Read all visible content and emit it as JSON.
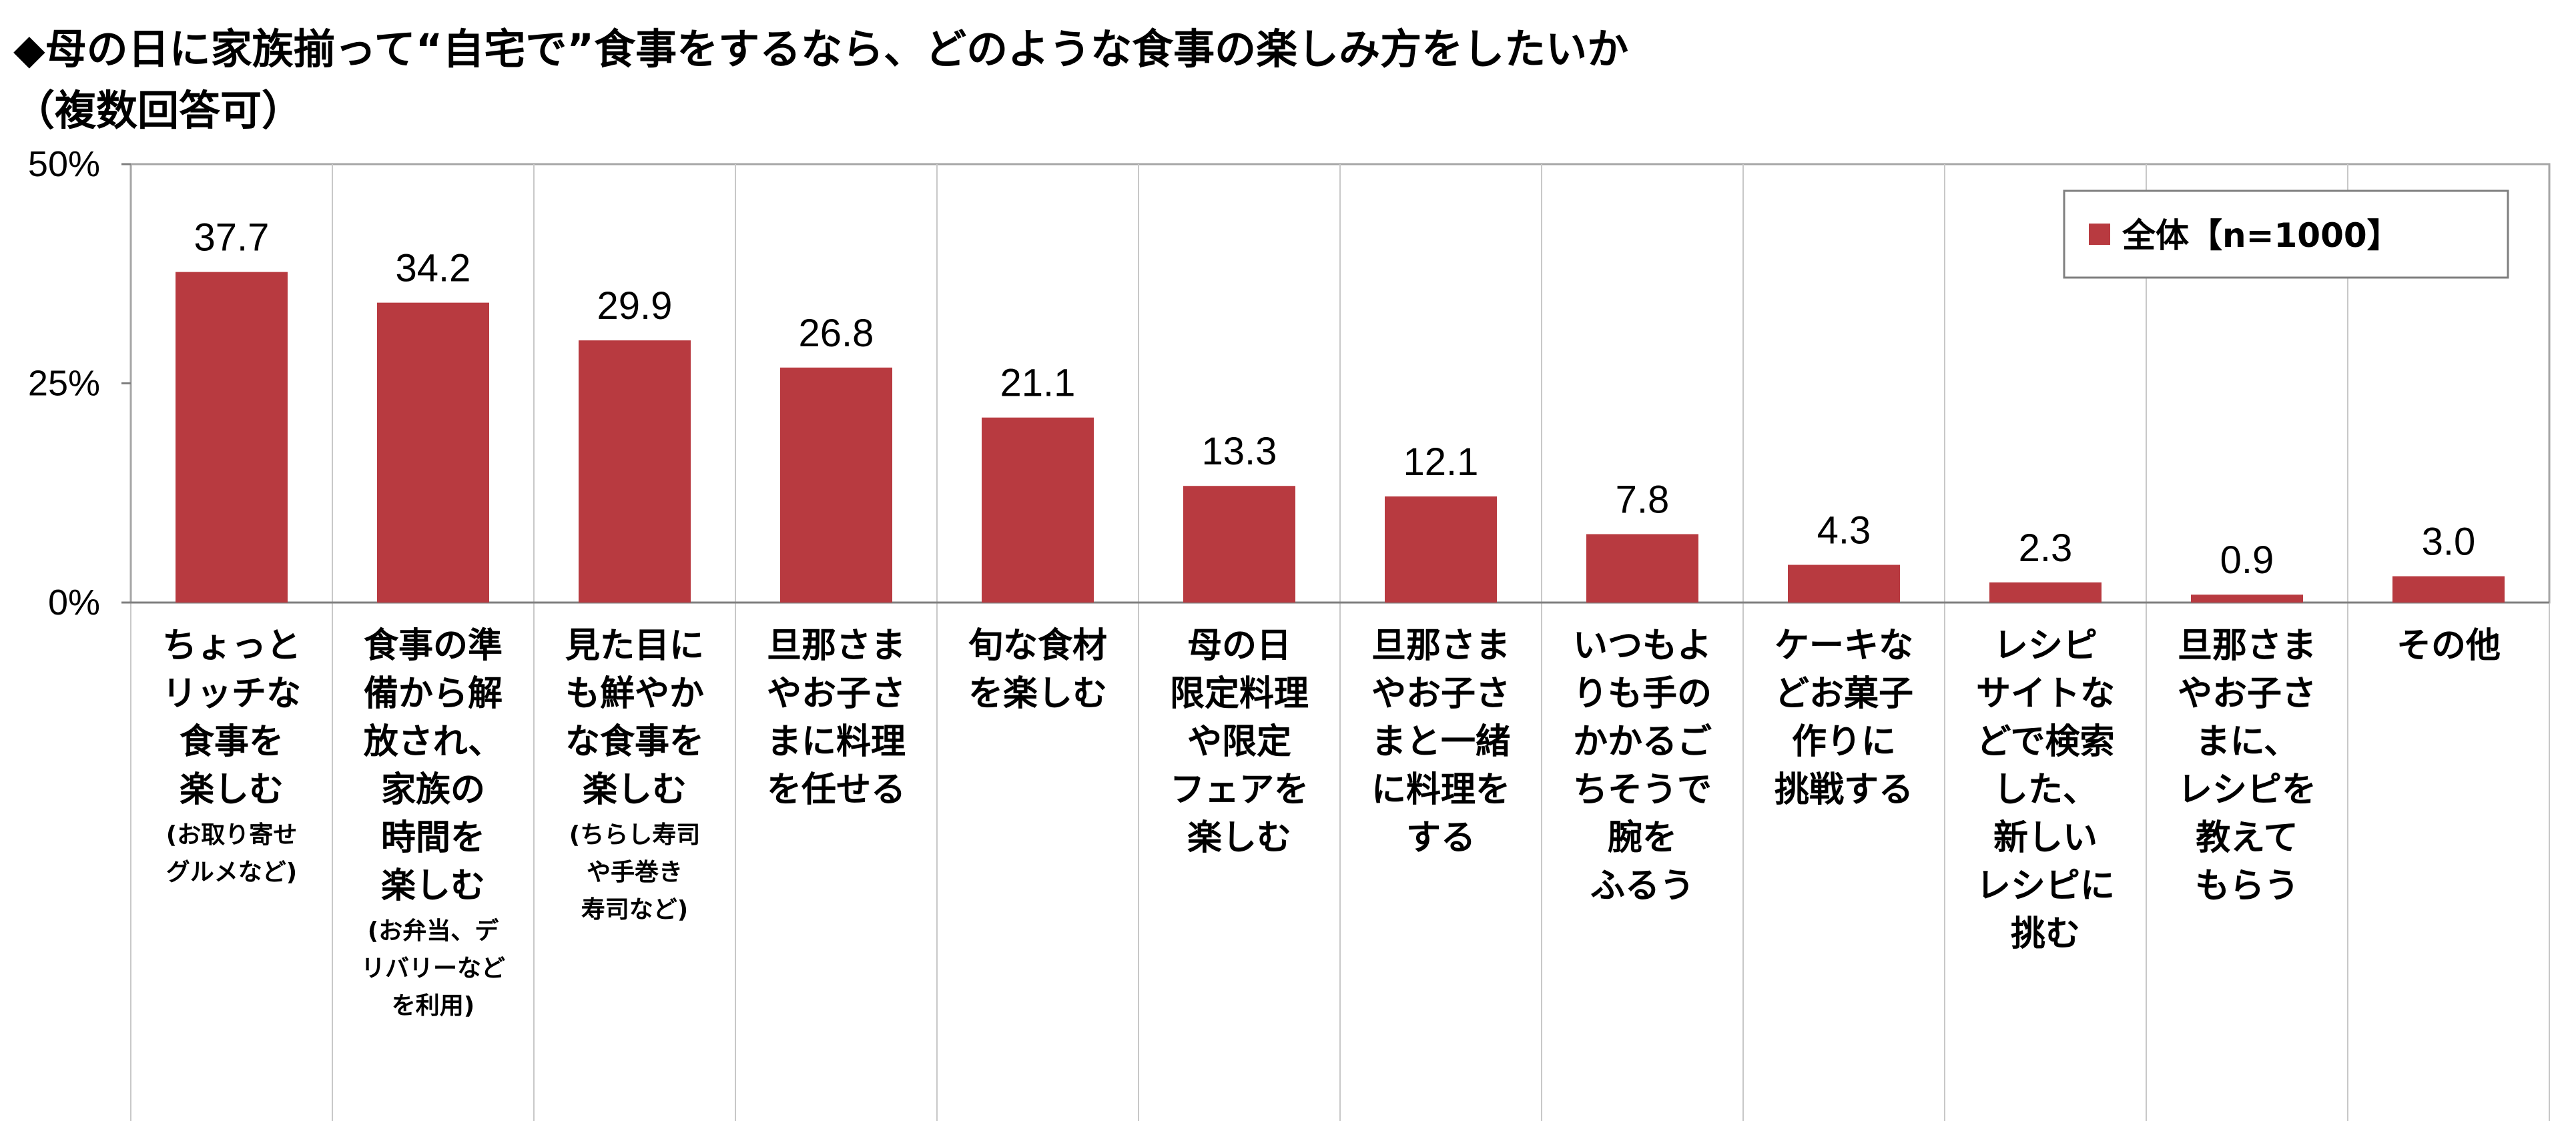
{
  "title": {
    "line1": "◆母の日に家族揃って“自宅で”食事をするなら、どのような食事の楽しみ方をしたいか",
    "line2": "（複数回答可）"
  },
  "chart_data": {
    "type": "bar",
    "ylim": [
      0,
      50
    ],
    "yticks": [
      "0%",
      "25%",
      "50%"
    ],
    "ytick_values": [
      0,
      25,
      50
    ],
    "bar_color": "#b83a40",
    "legend_position": "top-right",
    "categories": [
      {
        "lines": [
          "ちょっと",
          "リッチな",
          "食事を",
          "楽しむ"
        ],
        "note": [
          "(お取り寄せ",
          "グルメなど)"
        ]
      },
      {
        "lines": [
          "食事の準",
          "備から解",
          "放され、",
          "家族の",
          "時間を",
          "楽しむ"
        ],
        "note": [
          "(お弁当、デ",
          "リバリーなど",
          "を利用)"
        ]
      },
      {
        "lines": [
          "見た目に",
          "も鮮やか",
          "な食事を",
          "楽しむ"
        ],
        "note": [
          "(ちらし寿司",
          "や手巻き",
          "寿司など)"
        ]
      },
      {
        "lines": [
          "旦那さま",
          "やお子さ",
          "まに料理",
          "を任せる"
        ],
        "note": []
      },
      {
        "lines": [
          "旬な食材",
          "を楽しむ"
        ],
        "note": []
      },
      {
        "lines": [
          "母の日",
          "限定料理",
          "や限定",
          "フェアを",
          "楽しむ"
        ],
        "note": []
      },
      {
        "lines": [
          "旦那さま",
          "やお子さ",
          "まと一緒",
          "に料理を",
          "する"
        ],
        "note": []
      },
      {
        "lines": [
          "いつもよ",
          "りも手の",
          "かかるご",
          "ちそうで",
          "腕を",
          "ふるう"
        ],
        "note": []
      },
      {
        "lines": [
          "ケーキな",
          "どお菓子",
          "作りに",
          "挑戦する"
        ],
        "note": []
      },
      {
        "lines": [
          "レシピ",
          "サイトな",
          "どで検索",
          "した、",
          "新しい",
          "レシピに",
          "挑む"
        ],
        "note": []
      },
      {
        "lines": [
          "旦那さま",
          "やお子さ",
          "まに、",
          "レシピを",
          "教えて",
          "もらう"
        ],
        "note": []
      },
      {
        "lines": [
          "その他"
        ],
        "note": []
      }
    ],
    "series": [
      {
        "name": "全体【n=1000】",
        "values": [
          37.7,
          34.2,
          29.9,
          26.8,
          21.1,
          13.3,
          12.1,
          7.8,
          4.3,
          2.3,
          0.9,
          3.0
        ],
        "labels": [
          "37.7",
          "34.2",
          "29.9",
          "26.8",
          "21.1",
          "13.3",
          "12.1",
          "7.8",
          "4.3",
          "2.3",
          "0.9",
          "3.0"
        ]
      }
    ]
  }
}
